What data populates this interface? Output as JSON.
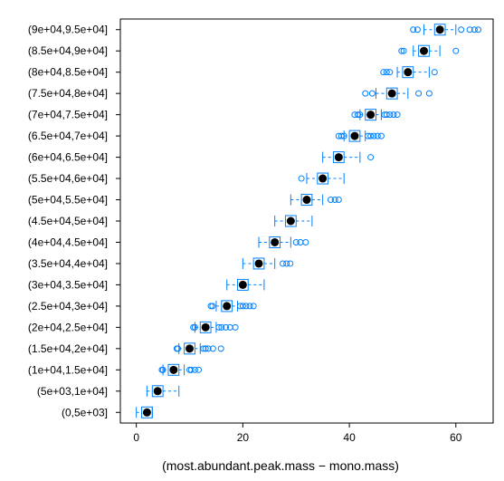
{
  "chart_data": {
    "type": "box",
    "orientation": "horizontal",
    "title": "",
    "xlabel": "(most.abundant.peak.mass − mono.mass)",
    "ylabel": "",
    "xlim": [
      -3,
      67
    ],
    "xticks": [
      0,
      20,
      40,
      60
    ],
    "grid": false,
    "legend": "none",
    "colors": {
      "box": "#0080ff",
      "median": "#000000",
      "frame": "#000000"
    },
    "categories": [
      "(0,5e+03]",
      "(5e+03,1e+04]",
      "(1e+04,1.5e+04]",
      "(1.5e+04,2e+04]",
      "(2e+04,2.5e+04]",
      "(2.5e+04,3e+04]",
      "(3e+04,3.5e+04]",
      "(3.5e+04,4e+04]",
      "(4e+04,4.5e+04]",
      "(4.5e+04,5e+04]",
      "(5e+04,5.5e+04]",
      "(5.5e+04,6e+04]",
      "(6e+04,6.5e+04]",
      "(6.5e+04,7e+04]",
      "(7e+04,7.5e+04]",
      "(7.5e+04,8e+04]",
      "(8e+04,8.5e+04]",
      "(8.5e+04,9e+04]",
      "(9e+04,9.5e+04]"
    ],
    "boxes": [
      {
        "min": 0,
        "q1": 1,
        "median": 2,
        "q3": 3,
        "max": 3,
        "outliers": []
      },
      {
        "min": 2,
        "q1": 3,
        "median": 4,
        "q3": 5,
        "max": 8,
        "outliers": []
      },
      {
        "min": 5,
        "q1": 6,
        "median": 7,
        "q3": 8,
        "max": 9,
        "outliers": [
          4.8,
          5,
          10,
          10.3,
          11,
          11.7
        ]
      },
      {
        "min": 8,
        "q1": 9,
        "median": 10,
        "q3": 11,
        "max": 12,
        "outliers": [
          7.6,
          7.8,
          12.6,
          13,
          13.5,
          14.4,
          15.9
        ]
      },
      {
        "min": 11,
        "q1": 12,
        "median": 13,
        "q3": 14,
        "max": 15,
        "outliers": [
          10.7,
          11,
          15.5,
          16,
          16.8,
          17.6,
          18.6
        ]
      },
      {
        "min": 15,
        "q1": 16,
        "median": 17,
        "q3": 18,
        "max": 19,
        "outliers": [
          14,
          14.3,
          19.5,
          20,
          20.6,
          21.3,
          22
        ]
      },
      {
        "min": 17,
        "q1": 19,
        "median": 20,
        "q3": 21,
        "max": 24,
        "outliers": []
      },
      {
        "min": 20,
        "q1": 22,
        "median": 23,
        "q3": 24,
        "max": 26,
        "outliers": [
          27.5,
          28.2,
          28.9
        ]
      },
      {
        "min": 23,
        "q1": 25,
        "median": 26,
        "q3": 27,
        "max": 29,
        "outliers": [
          30,
          30.8,
          31.8
        ]
      },
      {
        "min": 26,
        "q1": 28,
        "median": 29,
        "q3": 30,
        "max": 33,
        "outliers": []
      },
      {
        "min": 29,
        "q1": 31,
        "median": 32,
        "q3": 33,
        "max": 35,
        "outliers": [
          36.5,
          37.3,
          38
        ]
      },
      {
        "min": 32,
        "q1": 34,
        "median": 35,
        "q3": 36,
        "max": 39,
        "outliers": [
          31
        ]
      },
      {
        "min": 35,
        "q1": 37,
        "median": 38,
        "q3": 39,
        "max": 42,
        "outliers": [
          44
        ]
      },
      {
        "min": 39,
        "q1": 40,
        "median": 41,
        "q3": 42,
        "max": 43,
        "outliers": [
          38,
          38.5,
          39,
          43.5,
          44,
          44.6,
          45.3,
          46
        ]
      },
      {
        "min": 42,
        "q1": 43,
        "median": 44,
        "q3": 45,
        "max": 46,
        "outliers": [
          41,
          41.6,
          42,
          46.6,
          47,
          47.6,
          48.3,
          49
        ]
      },
      {
        "min": 45,
        "q1": 47,
        "median": 48,
        "q3": 49,
        "max": 51,
        "outliers": [
          43,
          44.3,
          53,
          55
        ]
      },
      {
        "min": 49,
        "q1": 50,
        "median": 51,
        "q3": 52,
        "max": 55,
        "outliers": [
          46.4,
          47,
          47.6,
          56
        ]
      },
      {
        "min": 52,
        "q1": 53,
        "median": 54,
        "q3": 55,
        "max": 57,
        "outliers": [
          49.8,
          50.2,
          60
        ]
      },
      {
        "min": 54,
        "q1": 56,
        "median": 57,
        "q3": 58,
        "max": 60,
        "outliers": [
          52,
          52.8,
          61,
          62.6,
          63.5,
          64.2
        ]
      }
    ]
  }
}
